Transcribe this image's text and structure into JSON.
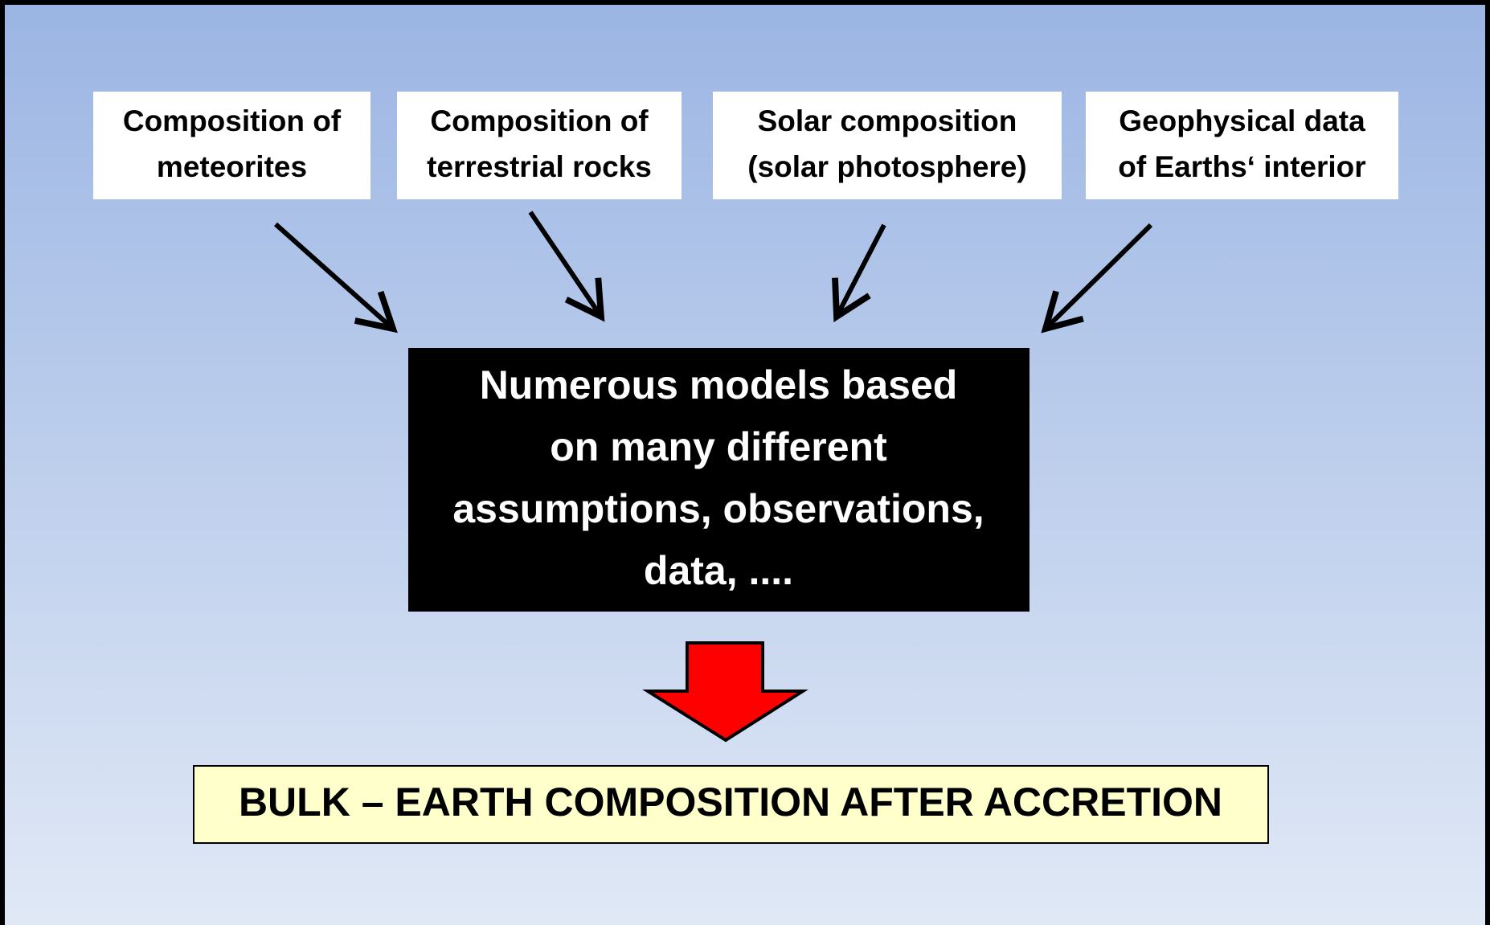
{
  "sources": [
    {
      "lines": [
        "Composition of",
        "meteorites"
      ]
    },
    {
      "lines": [
        "Composition of",
        "terrestrial rocks"
      ]
    },
    {
      "lines": [
        "Solar composition",
        "(solar photosphere)"
      ]
    },
    {
      "lines": [
        "Geophysical data",
        "of Earths‘ interior"
      ]
    }
  ],
  "models": {
    "lines": [
      "Numerous models based",
      "on many different",
      "assumptions, observations,",
      "data, ...."
    ]
  },
  "result": {
    "label": "BULK – EARTH COMPOSITION AFTER ACCRETION"
  }
}
